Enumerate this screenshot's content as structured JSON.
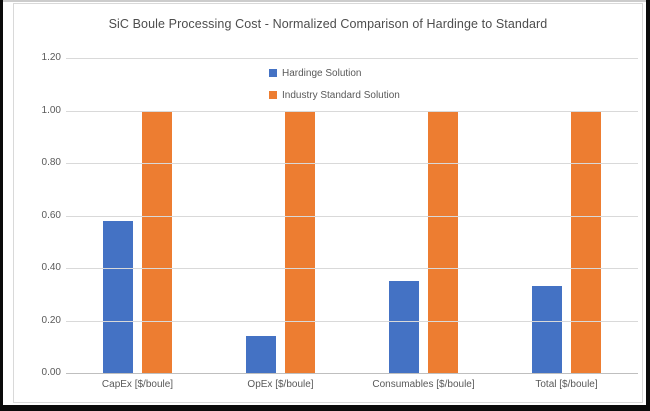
{
  "chart_data": {
    "type": "bar",
    "title": "SiC Boule Processing Cost - Normalized Comparison of Hardinge to Standard",
    "categories": [
      "CapEx [$/boule]",
      "OpEx [$/boule]",
      "Consumables [$/boule]",
      "Total [$/boule]"
    ],
    "series": [
      {
        "name": "Hardinge Solution",
        "color": "#4472C4",
        "values": [
          0.58,
          0.14,
          0.35,
          0.33
        ]
      },
      {
        "name": "Industry Standard Solution",
        "color": "#ED7D31",
        "values": [
          1.0,
          1.0,
          1.0,
          1.0
        ]
      }
    ],
    "xlabel": "",
    "ylabel": "",
    "ylim": [
      0,
      1.2
    ],
    "yticks": [
      0.0,
      0.2,
      0.4,
      0.6,
      0.8,
      1.0,
      1.2
    ],
    "ytick_labels": [
      "0.00",
      "0.20",
      "0.40",
      "0.60",
      "0.80",
      "1.00",
      "1.20"
    ],
    "grid": true,
    "legend_position": "top-center-stacked"
  }
}
